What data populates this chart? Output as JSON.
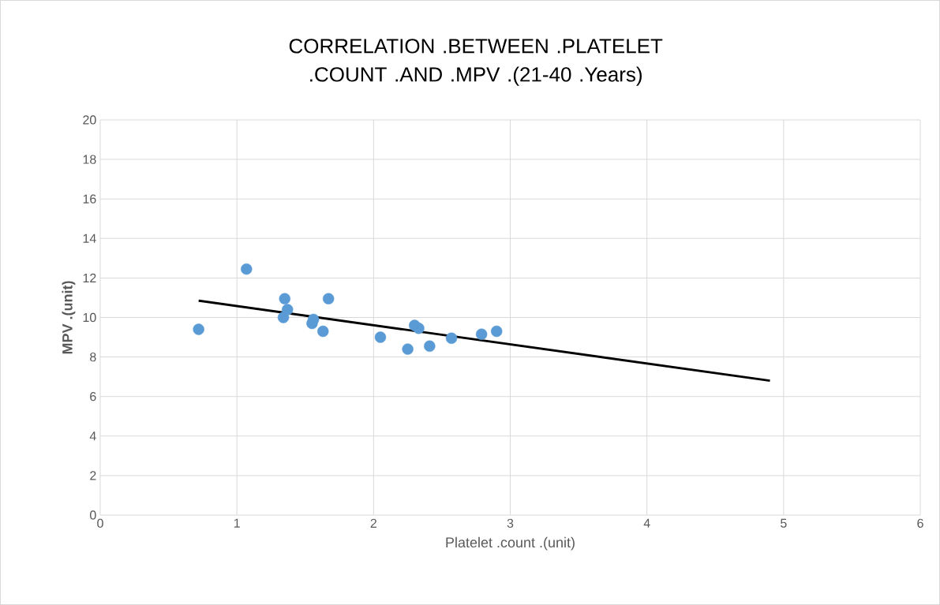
{
  "chart_data": {
    "type": "scatter",
    "title": "CORRELATION .BETWEEN .PLATELET .COUNT .AND .MPV .(21-40 .Years)",
    "xlabel": "Platelet .count .(unit)",
    "ylabel": "MPV .(unit)",
    "series": [
      {
        "color": "#5b9bd5",
        "x": [
          0.72,
          1.07,
          1.35,
          1.37,
          1.34,
          1.56,
          1.55,
          1.67,
          1.63,
          2.05,
          2.3,
          2.33,
          2.25,
          2.41,
          2.57,
          2.79,
          2.9
        ],
        "values": [
          9.4,
          12.45,
          10.95,
          10.4,
          10.0,
          9.9,
          9.7,
          10.95,
          9.3,
          9.0,
          9.6,
          9.45,
          8.4,
          8.55,
          8.95,
          9.15,
          9.3
        ]
      },
      {
        "type": "line",
        "color": "#000000",
        "marker": "none",
        "x": [
          0.72,
          4.9
        ],
        "values": [
          10.85,
          6.8
        ]
      }
    ],
    "xlim": [
      0,
      6
    ],
    "xticks": [
      0,
      1,
      2,
      3,
      4,
      5,
      6
    ],
    "ylim": [
      0,
      20
    ],
    "yticks": [
      0,
      2,
      4,
      6,
      8,
      10,
      12,
      14,
      16,
      18,
      20
    ],
    "grid": true,
    "marker": "circle"
  }
}
